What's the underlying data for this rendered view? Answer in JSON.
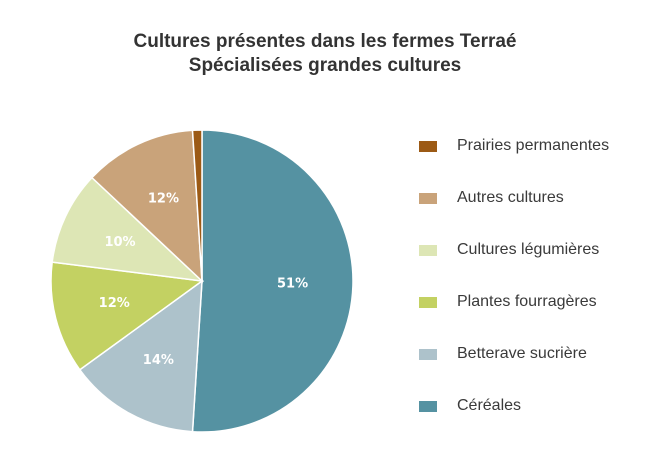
{
  "chart_data": {
    "type": "pie",
    "title": "Cultures présentes dans les fermes Terraé",
    "subtitle": "Spécialisées grandes cultures",
    "slices": [
      {
        "name": "Céréales",
        "value": 51,
        "label": "51%",
        "color": "#5592a2"
      },
      {
        "name": "Betterave sucrière",
        "value": 14,
        "label": "14%",
        "color": "#adc2cb"
      },
      {
        "name": "Plantes fourragères",
        "value": 12,
        "label": "12%",
        "color": "#c3d162"
      },
      {
        "name": "Cultures légumières",
        "value": 10,
        "label": "10%",
        "color": "#dde6b5"
      },
      {
        "name": "Autres cultures",
        "value": 12,
        "label": "12%",
        "color": "#c9a37a"
      },
      {
        "name": "Prairies permanentes",
        "value": 1,
        "label": "1%",
        "color": "#9c5a15"
      }
    ],
    "legend_order": [
      "Prairies permanentes",
      "Autres cultures",
      "Cultures légumières",
      "Plantes fourragères",
      "Betterave sucrière",
      "Céréales"
    ],
    "legend_placement": "right"
  }
}
